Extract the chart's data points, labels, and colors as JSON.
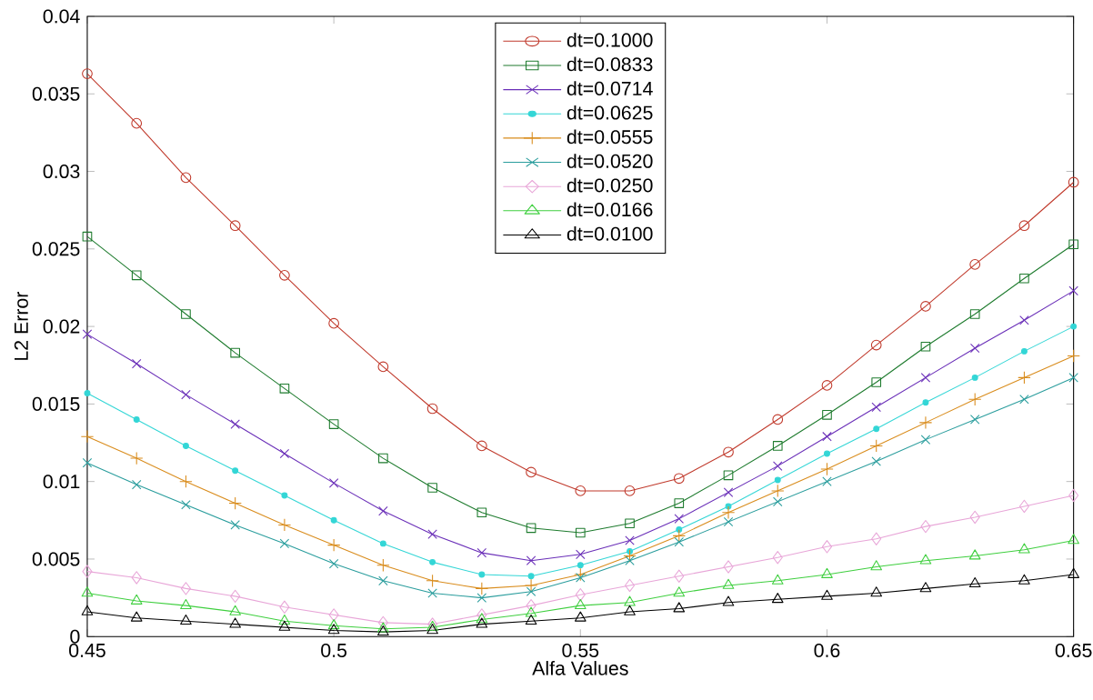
{
  "chart_data": {
    "type": "line",
    "xlabel": "Alfa Values",
    "ylabel": "L2 Error",
    "x": [
      0.45,
      0.46,
      0.47,
      0.48,
      0.49,
      0.5,
      0.51,
      0.52,
      0.53,
      0.54,
      0.55,
      0.56,
      0.57,
      0.58,
      0.59,
      0.6,
      0.61,
      0.62,
      0.63,
      0.64,
      0.65
    ],
    "xlim": [
      0.45,
      0.65
    ],
    "xticks": [
      0.45,
      0.5,
      0.55,
      0.6,
      0.65
    ],
    "ylim": [
      0,
      0.04
    ],
    "yticks": [
      0,
      0.005,
      0.01,
      0.015,
      0.02,
      0.025,
      0.03,
      0.035,
      0.04
    ],
    "grid": false,
    "legend": "top",
    "line_style": "solid",
    "series": [
      {
        "name": "dt=0.1000",
        "color": "#c0392b",
        "marker": "circle",
        "values": [
          0.0363,
          0.0331,
          0.0296,
          0.0265,
          0.0233,
          0.0202,
          0.0174,
          0.0147,
          0.0123,
          0.0106,
          0.0094,
          0.0094,
          0.0102,
          0.0119,
          0.014,
          0.0162,
          0.0188,
          0.0213,
          0.024,
          0.0265,
          0.0293
        ]
      },
      {
        "name": "dt=0.0833",
        "color": "#1e7b2e",
        "marker": "square",
        "values": [
          0.0258,
          0.0233,
          0.0208,
          0.0183,
          0.016,
          0.0137,
          0.0115,
          0.0096,
          0.008,
          0.007,
          0.0067,
          0.0073,
          0.0086,
          0.0104,
          0.0123,
          0.0143,
          0.0164,
          0.0187,
          0.0208,
          0.0231,
          0.0253
        ]
      },
      {
        "name": "dt=0.0714",
        "color": "#6a2fb8",
        "marker": "cross",
        "values": [
          0.0195,
          0.0176,
          0.0156,
          0.0137,
          0.0118,
          0.0099,
          0.0081,
          0.0066,
          0.0054,
          0.0049,
          0.0053,
          0.0062,
          0.0076,
          0.0093,
          0.011,
          0.0129,
          0.0148,
          0.0167,
          0.0186,
          0.0204,
          0.0223
        ]
      },
      {
        "name": "dt=0.0625",
        "color": "#33d6d6",
        "marker": "point",
        "values": [
          0.0157,
          0.014,
          0.0123,
          0.0107,
          0.0091,
          0.0075,
          0.006,
          0.0048,
          0.004,
          0.0039,
          0.0046,
          0.0055,
          0.0069,
          0.0084,
          0.0101,
          0.0118,
          0.0134,
          0.0151,
          0.0167,
          0.0184,
          0.02
        ]
      },
      {
        "name": "dt=0.0555",
        "color": "#d98c1c",
        "marker": "plus",
        "values": [
          0.0129,
          0.0115,
          0.01,
          0.0086,
          0.0072,
          0.0059,
          0.0046,
          0.0036,
          0.0031,
          0.0033,
          0.004,
          0.0052,
          0.0065,
          0.008,
          0.0094,
          0.0108,
          0.0123,
          0.0138,
          0.0153,
          0.0167,
          0.0181
        ]
      },
      {
        "name": "dt=0.0520",
        "color": "#2a9d9d",
        "marker": "cross",
        "values": [
          0.0112,
          0.0098,
          0.0085,
          0.0072,
          0.006,
          0.0047,
          0.0036,
          0.0028,
          0.0025,
          0.0029,
          0.0038,
          0.0049,
          0.0061,
          0.0074,
          0.0087,
          0.01,
          0.0113,
          0.0127,
          0.014,
          0.0153,
          0.0167
        ]
      },
      {
        "name": "dt=0.0250",
        "color": "#e8a6d8",
        "marker": "diamond",
        "values": [
          0.0042,
          0.0038,
          0.0031,
          0.0026,
          0.0019,
          0.0014,
          0.0009,
          0.0008,
          0.0014,
          0.002,
          0.0027,
          0.0033,
          0.0039,
          0.0045,
          0.0051,
          0.0058,
          0.0063,
          0.0071,
          0.0077,
          0.0084,
          0.0091
        ]
      },
      {
        "name": "dt=0.0166",
        "color": "#3fcf3f",
        "marker": "triangle-down",
        "values": [
          0.0028,
          0.0023,
          0.002,
          0.0016,
          0.001,
          0.0007,
          0.0005,
          0.0006,
          0.0011,
          0.0015,
          0.002,
          0.0022,
          0.0028,
          0.0033,
          0.0036,
          0.004,
          0.0045,
          0.0049,
          0.0052,
          0.0056,
          0.0062
        ]
      },
      {
        "name": "dt=0.0100",
        "color": "#000000",
        "marker": "triangle",
        "values": [
          0.0016,
          0.0012,
          0.001,
          0.0008,
          0.0006,
          0.0004,
          0.0003,
          0.0004,
          0.0008,
          0.001,
          0.0012,
          0.0016,
          0.0018,
          0.0022,
          0.0024,
          0.0026,
          0.0028,
          0.0031,
          0.0034,
          0.0036,
          0.004
        ]
      }
    ]
  }
}
